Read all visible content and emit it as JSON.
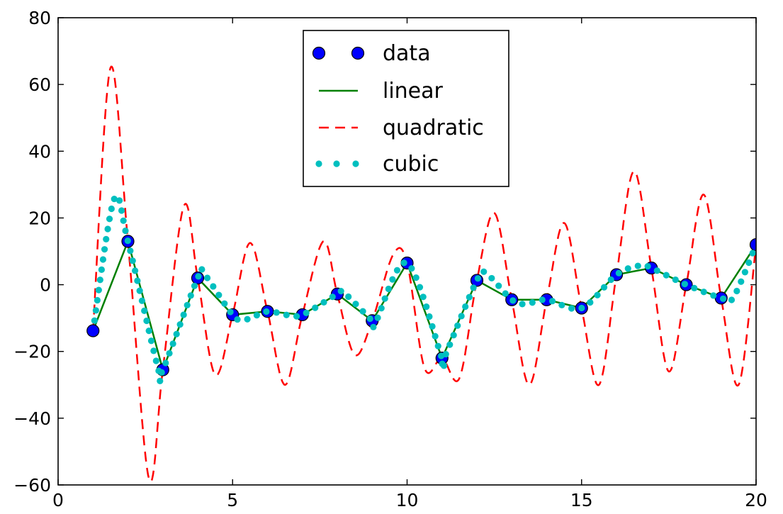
{
  "chart_data": {
    "type": "line",
    "xlim": [
      0,
      20
    ],
    "ylim": [
      -60,
      80
    ],
    "x_ticks": [
      0,
      5,
      10,
      15,
      20
    ],
    "y_ticks": [
      80,
      60,
      40,
      20,
      0,
      -20,
      -40,
      -60
    ],
    "x_tick_labels": [
      "0",
      "5",
      "10",
      "15",
      "20"
    ],
    "y_tick_labels": [
      "80",
      "60",
      "40",
      "20",
      "0",
      "−20",
      "−40",
      "−60"
    ],
    "grid": false,
    "legend_position": "top-center",
    "x": [
      1,
      2,
      3,
      4,
      5,
      6,
      7,
      8,
      9,
      10,
      11,
      12,
      13,
      14,
      15,
      16,
      17,
      18,
      19,
      20
    ],
    "series": [
      {
        "name": "data",
        "style": "markers",
        "color": "#0000ff",
        "values": [
          -13.8,
          13,
          -25.5,
          2,
          -9,
          -8,
          -9,
          -2.8,
          -10.8,
          6.5,
          -22,
          1.3,
          -4.5,
          -4.5,
          -7,
          3,
          5,
          0,
          -4,
          12
        ]
      },
      {
        "name": "linear",
        "style": "solid",
        "color": "#008000",
        "values": [
          -13.8,
          13,
          -25.5,
          2,
          -9,
          -8,
          -9,
          -2.8,
          -10.8,
          6.5,
          -22,
          1.3,
          -4.5,
          -4.5,
          -7,
          3,
          5,
          0,
          -4,
          12
        ]
      },
      {
        "name": "quadratic",
        "style": "dashed",
        "color": "#ff0000",
        "knots": [
          [
            1,
            -13.8
          ],
          [
            1.5,
            65
          ],
          [
            2,
            13
          ],
          [
            2.6,
            -58
          ],
          [
            3,
            -25.5
          ],
          [
            3.6,
            23.5
          ],
          [
            4,
            2
          ],
          [
            4.5,
            -27
          ],
          [
            5,
            -9
          ],
          [
            5.5,
            12.5
          ],
          [
            6,
            -8
          ],
          [
            6.5,
            -30
          ],
          [
            7,
            -9
          ],
          [
            7.6,
            13
          ],
          [
            8,
            -2.8
          ],
          [
            8.5,
            -21
          ],
          [
            9,
            -10.8
          ],
          [
            9.6,
            9
          ],
          [
            10,
            6.5
          ],
          [
            10.5,
            -25
          ],
          [
            11,
            -22
          ],
          [
            11.5,
            -28
          ],
          [
            12,
            1.3
          ],
          [
            12.5,
            21.5
          ],
          [
            13,
            -4.5
          ],
          [
            13.5,
            -30
          ],
          [
            14,
            -4.5
          ],
          [
            14.5,
            18.5
          ],
          [
            15,
            -7
          ],
          [
            15.5,
            -30
          ],
          [
            16,
            3
          ],
          [
            16.5,
            34
          ],
          [
            17,
            5
          ],
          [
            17.5,
            -26
          ],
          [
            18,
            0
          ],
          [
            18.5,
            27
          ],
          [
            19,
            -4
          ],
          [
            19.5,
            -30
          ],
          [
            20,
            12
          ]
        ]
      },
      {
        "name": "cubic",
        "style": "dotted",
        "color": "#00bfbf",
        "knots": [
          [
            1,
            -13.8
          ],
          [
            1.6,
            25.5
          ],
          [
            2,
            13
          ],
          [
            2.85,
            -24.5
          ],
          [
            3,
            -25.5
          ],
          [
            4,
            2
          ],
          [
            4.2,
            3
          ],
          [
            5,
            -9
          ],
          [
            5.35,
            -10.5
          ],
          [
            6,
            -8
          ],
          [
            6.5,
            -9
          ],
          [
            7,
            -9
          ],
          [
            8,
            -2.8
          ],
          [
            8.2,
            -2.5
          ],
          [
            9,
            -10.8
          ],
          [
            9.1,
            -11.2
          ],
          [
            10,
            6.5
          ],
          [
            11,
            -22
          ],
          [
            11.05,
            -22.3
          ],
          [
            12,
            1.3
          ],
          [
            12.3,
            3
          ],
          [
            13,
            -4.5
          ],
          [
            13.4,
            -5.8
          ],
          [
            14,
            -4.5
          ],
          [
            15,
            -7
          ],
          [
            16,
            3
          ],
          [
            16.7,
            5.8
          ],
          [
            17,
            5
          ],
          [
            18,
            0
          ],
          [
            19,
            -4
          ],
          [
            19.35,
            -3.8
          ],
          [
            20,
            12
          ]
        ]
      }
    ]
  }
}
